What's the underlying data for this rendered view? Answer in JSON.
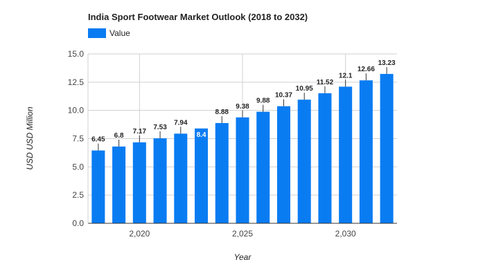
{
  "chart_data": {
    "type": "bar",
    "title": "India Sport Footwear Market Outlook (2018 to 2032)",
    "xlabel": "Year",
    "ylabel": "USD USD Million",
    "x": [
      2018,
      2019,
      2020,
      2021,
      2022,
      2023,
      2024,
      2025,
      2026,
      2027,
      2028,
      2029,
      2030,
      2031,
      2032
    ],
    "series": [
      {
        "name": "Value",
        "values": [
          6.45,
          6.8,
          7.17,
          7.53,
          7.94,
          8.4,
          8.88,
          9.38,
          9.88,
          10.37,
          10.95,
          11.52,
          12.1,
          12.66,
          13.23
        ]
      }
    ],
    "data_labels": [
      "6.45",
      "6.8",
      "7.17",
      "7.53",
      "7.94",
      "8.4",
      "8.88",
      "9.38",
      "9.88",
      "10.37",
      "10.95",
      "11.52",
      "12.1",
      "12.66",
      "13.23"
    ],
    "ylim": [
      0,
      15
    ],
    "yticks": [
      0,
      2.5,
      5,
      7.5,
      10,
      12.5,
      15
    ],
    "ytick_labels": [
      "0.0",
      "2.5",
      "5.0",
      "7.5",
      "10.0",
      "12.5",
      "15.0"
    ],
    "xticks": [
      2020,
      2025,
      2030
    ],
    "xtick_labels": [
      "2,020",
      "2,025",
      "2,030"
    ],
    "grid": true,
    "legend_position": "top-left",
    "bar_color": "#0a7cf2",
    "grid_color": "#d0d0d0",
    "axis_color": "#333333",
    "text_color": "#222222"
  }
}
